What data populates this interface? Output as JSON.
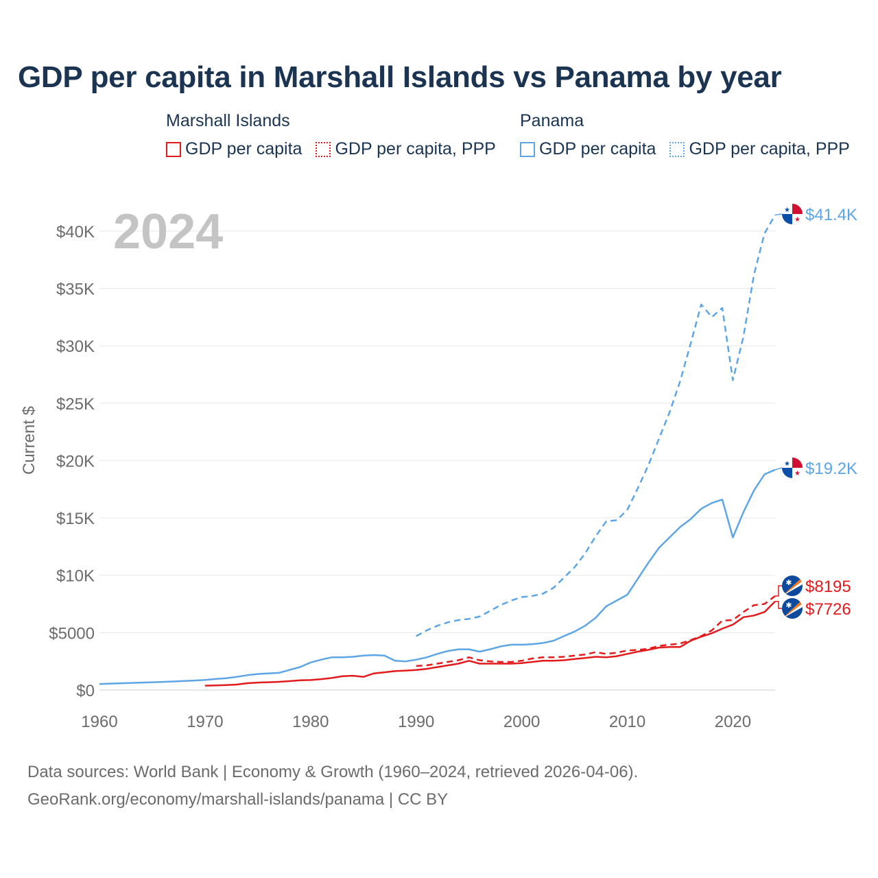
{
  "title": "GDP per capita in Marshall Islands vs Panama by year",
  "legend": {
    "groups": [
      {
        "name": "Marshall Islands",
        "color": "#e31a1c",
        "items": [
          {
            "label": "GDP per capita",
            "style": "solid"
          },
          {
            "label": "GDP per capita, PPP",
            "style": "dotted"
          }
        ]
      },
      {
        "name": "Panama",
        "color": "#5da5e4",
        "items": [
          {
            "label": "GDP per capita",
            "style": "solid"
          },
          {
            "label": "GDP per capita, PPP",
            "style": "dotted"
          }
        ]
      }
    ]
  },
  "year_watermark": "2024",
  "footer": {
    "line1": "Data sources: World Bank | Economy & Growth (1960–2024, retrieved 2026-04-06).",
    "line2": "GeoRank.org/economy/marshall-islands/panama | CC BY"
  },
  "chart_data": {
    "type": "line",
    "title": "GDP per capita in Marshall Islands vs Panama by year",
    "xlabel": "",
    "ylabel": "Current $",
    "xlim": [
      1960,
      2024
    ],
    "ylim": [
      0,
      42500
    ],
    "x_ticks": [
      1960,
      1970,
      1980,
      1990,
      2000,
      2010,
      2020
    ],
    "x_tick_labels": [
      "1960",
      "1970",
      "1980",
      "1990",
      "2000",
      "2010",
      "2020"
    ],
    "y_ticks": [
      0,
      5000,
      10000,
      15000,
      20000,
      25000,
      30000,
      35000,
      40000
    ],
    "y_tick_labels": [
      "$0",
      "$5000",
      "$10K",
      "$15K",
      "$20K",
      "$25K",
      "$30K",
      "$35K",
      "$40K"
    ],
    "grid": true,
    "series": [
      {
        "name": "Panama GDP per capita, PPP",
        "country": "Panama",
        "color": "#5da5e4",
        "dash": "dashed",
        "end_label": "$41.4K",
        "x": [
          1990,
          1991,
          1992,
          1993,
          1994,
          1995,
          1996,
          1997,
          1998,
          1999,
          2000,
          2001,
          2002,
          2003,
          2004,
          2005,
          2006,
          2007,
          2008,
          2009,
          2010,
          2011,
          2012,
          2013,
          2014,
          2015,
          2016,
          2017,
          2018,
          2019,
          2020,
          2021,
          2022,
          2023,
          2024
        ],
        "y": [
          4700,
          5200,
          5600,
          5900,
          6100,
          6200,
          6400,
          6900,
          7400,
          7800,
          8100,
          8200,
          8400,
          8900,
          9800,
          10700,
          11900,
          13400,
          14700,
          14800,
          15700,
          17600,
          19600,
          21900,
          24200,
          26900,
          30200,
          33600,
          32500,
          33300,
          27000,
          30800,
          36200,
          39800,
          41400
        ]
      },
      {
        "name": "Panama GDP per capita",
        "country": "Panama",
        "color": "#5da5e4",
        "dash": "solid",
        "end_label": "$19.2K",
        "x": [
          1960,
          1961,
          1962,
          1963,
          1964,
          1965,
          1966,
          1967,
          1968,
          1969,
          1970,
          1971,
          1972,
          1973,
          1974,
          1975,
          1976,
          1977,
          1978,
          1979,
          1980,
          1981,
          1982,
          1983,
          1984,
          1985,
          1986,
          1987,
          1988,
          1989,
          1990,
          1991,
          1992,
          1993,
          1994,
          1995,
          1996,
          1997,
          1998,
          1999,
          2000,
          2001,
          2002,
          2003,
          2004,
          2005,
          2006,
          2007,
          2008,
          2009,
          2010,
          2011,
          2012,
          2013,
          2014,
          2015,
          2016,
          2017,
          2018,
          2019,
          2020,
          2021,
          2022,
          2023,
          2024
        ],
        "y": [
          520,
          560,
          590,
          620,
          650,
          680,
          710,
          750,
          790,
          830,
          880,
          960,
          1030,
          1150,
          1300,
          1400,
          1450,
          1500,
          1750,
          2000,
          2400,
          2650,
          2850,
          2850,
          2900,
          3000,
          3050,
          3000,
          2550,
          2500,
          2650,
          2850,
          3150,
          3400,
          3550,
          3550,
          3350,
          3550,
          3800,
          3950,
          3950,
          4000,
          4100,
          4300,
          4700,
          5100,
          5600,
          6300,
          7300,
          7800,
          8300,
          9700,
          11100,
          12400,
          13300,
          14200,
          14900,
          15800,
          16300,
          16600,
          13300,
          15500,
          17400,
          18800,
          19200
        ]
      },
      {
        "name": "Marshall Islands GDP per capita, PPP",
        "country": "Marshall Islands",
        "color": "#e31a1c",
        "dash": "dashed",
        "end_label": "$8195",
        "x": [
          1990,
          1991,
          1992,
          1993,
          1994,
          1995,
          1996,
          1997,
          1998,
          1999,
          2000,
          2001,
          2002,
          2003,
          2004,
          2005,
          2006,
          2007,
          2008,
          2009,
          2010,
          2011,
          2012,
          2013,
          2014,
          2015,
          2016,
          2017,
          2018,
          2019,
          2020,
          2021,
          2022,
          2023,
          2024
        ],
        "y": [
          2100,
          2150,
          2300,
          2450,
          2600,
          2850,
          2600,
          2500,
          2450,
          2450,
          2550,
          2750,
          2850,
          2850,
          2900,
          3000,
          3100,
          3300,
          3150,
          3250,
          3450,
          3500,
          3600,
          3850,
          3950,
          4050,
          4350,
          4700,
          5200,
          6050,
          6100,
          6800,
          7400,
          7500,
          8195
        ]
      },
      {
        "name": "Marshall Islands GDP per capita",
        "country": "Marshall Islands",
        "color": "#e31a1c",
        "dash": "solid",
        "end_label": "$7726",
        "x": [
          1970,
          1971,
          1972,
          1973,
          1974,
          1975,
          1976,
          1977,
          1978,
          1979,
          1980,
          1981,
          1982,
          1983,
          1984,
          1985,
          1986,
          1987,
          1988,
          1989,
          1990,
          1991,
          1992,
          1993,
          1994,
          1995,
          1996,
          1997,
          1998,
          1999,
          2000,
          2001,
          2002,
          2003,
          2004,
          2005,
          2006,
          2007,
          2008,
          2009,
          2010,
          2011,
          2012,
          2013,
          2014,
          2015,
          2016,
          2017,
          2018,
          2019,
          2020,
          2021,
          2022,
          2023,
          2024
        ],
        "y": [
          380,
          400,
          430,
          480,
          600,
          650,
          680,
          720,
          780,
          850,
          870,
          950,
          1050,
          1200,
          1250,
          1150,
          1450,
          1550,
          1650,
          1700,
          1750,
          1850,
          2000,
          2150,
          2300,
          2550,
          2300,
          2300,
          2300,
          2300,
          2350,
          2450,
          2550,
          2550,
          2600,
          2700,
          2800,
          2900,
          2850,
          2950,
          3150,
          3350,
          3500,
          3700,
          3750,
          3750,
          4300,
          4650,
          4950,
          5350,
          5700,
          6350,
          6500,
          6800,
          7726
        ]
      }
    ]
  }
}
